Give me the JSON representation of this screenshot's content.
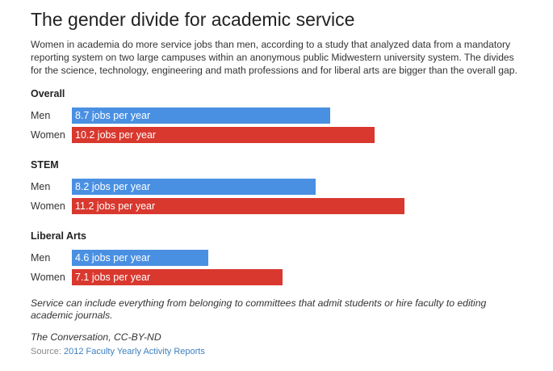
{
  "header": {
    "title": "The gender divide for academic service",
    "description": "Women in academia do more service jobs than men, according to a study that analyzed data from a mandatory reporting system on two large campuses within an anonymous public Midwestern university system. The divides for the science, technology, engineering and math professions and for liberal arts are bigger than the overall gap."
  },
  "chart_data": {
    "type": "bar",
    "orientation": "horizontal",
    "unit_suffix": "jobs per year",
    "colors": {
      "Men": "#4a90e2",
      "Women": "#d9382e"
    },
    "groups": [
      {
        "title": "Overall",
        "rows": [
          {
            "label": "Men",
            "value": 8.7,
            "value_label": "8.7 jobs per year"
          },
          {
            "label": "Women",
            "value": 10.2,
            "value_label": "10.2 jobs per year"
          }
        ]
      },
      {
        "title": "STEM",
        "rows": [
          {
            "label": "Men",
            "value": 8.2,
            "value_label": "8.2 jobs per year"
          },
          {
            "label": "Women",
            "value": 11.2,
            "value_label": "11.2 jobs per year"
          }
        ]
      },
      {
        "title": "Liberal Arts",
        "rows": [
          {
            "label": "Men",
            "value": 4.6,
            "value_label": "4.6 jobs per year"
          },
          {
            "label": "Women",
            "value": 7.1,
            "value_label": "7.1 jobs per year"
          }
        ]
      }
    ]
  },
  "footer": {
    "note": "Service can include everything from belonging to committees that admit students or hire faculty to editing academic journals.",
    "credit": "The Conversation, CC-BY-ND",
    "source_prefix": "Source:",
    "source_link": "2012 Faculty Yearly Activity Reports"
  }
}
